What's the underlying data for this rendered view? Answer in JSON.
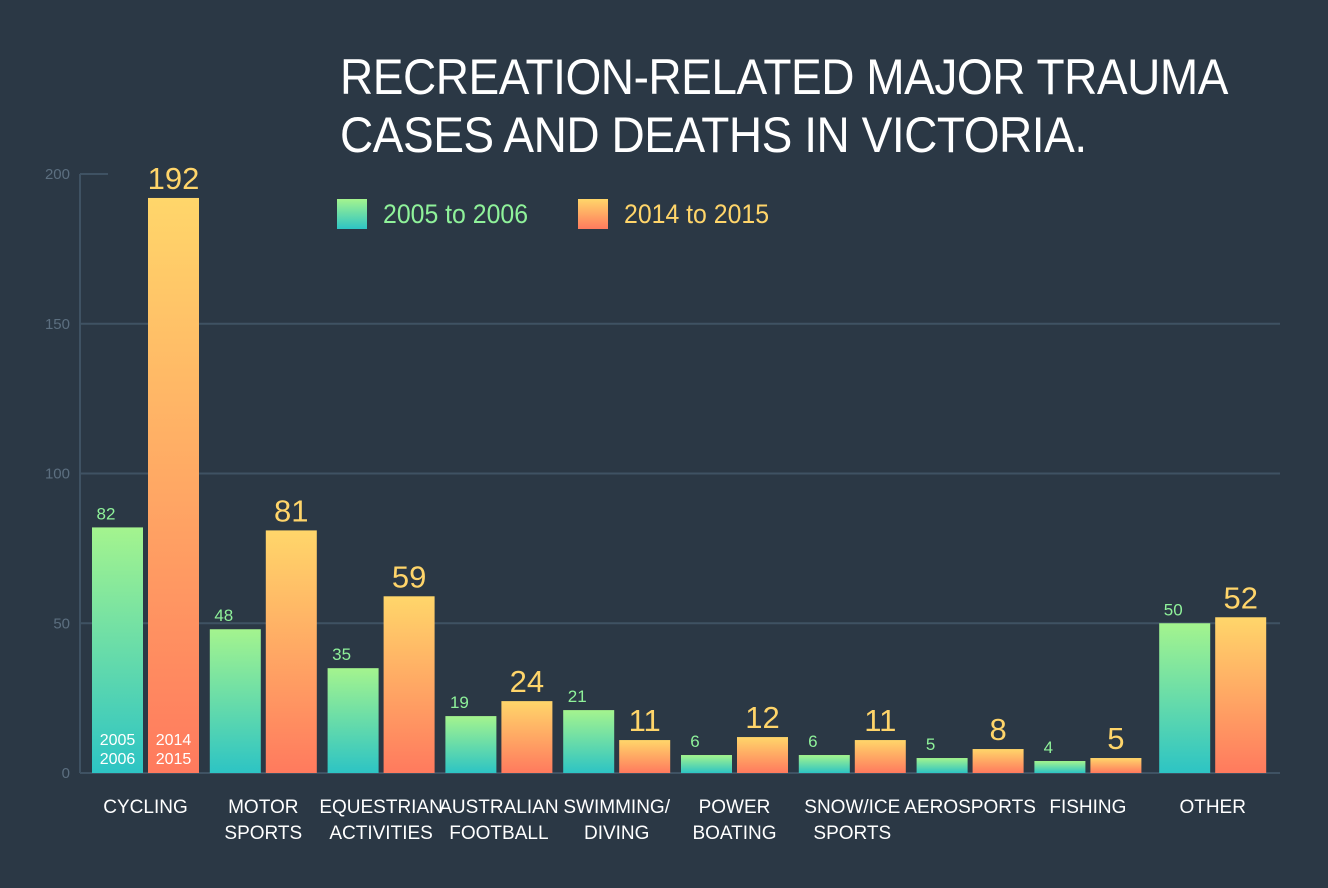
{
  "title": {
    "line1": "RECREATION-RELATED MAJOR TRAUMA",
    "line2": "CASES AND DEATHS IN VICTORIA."
  },
  "colors": {
    "background": "#2b3845",
    "series_a_top": "#a4f48e",
    "series_a_bottom": "#2dc4c4",
    "series_b_top": "#ffd66a",
    "series_b_bottom": "#ff7a5e",
    "series_a_text": "#8ff29a",
    "series_b_text": "#ffd56a",
    "grid": "#3f5263",
    "tick_text": "#5c6f80"
  },
  "legend": {
    "series_a": "2005 to 2006",
    "series_b": "2014 to 2015"
  },
  "chart_data": {
    "type": "bar",
    "title": "RECREATION-RELATED MAJOR TRAUMA CASES AND DEATHS IN VICTORIA.",
    "categories": [
      [
        "CYCLING"
      ],
      [
        "MOTOR",
        "SPORTS"
      ],
      [
        "EQUESTRIAN",
        "ACTIVITIES"
      ],
      [
        "AUSTRALIAN",
        "FOOTBALL"
      ],
      [
        "SWIMMING/",
        "DIVING"
      ],
      [
        "POWER",
        "BOATING"
      ],
      [
        "SNOW/ICE",
        "SPORTS"
      ],
      [
        "AEROSPORTS"
      ],
      [
        "FISHING"
      ],
      [
        "OTHER"
      ]
    ],
    "series": [
      {
        "name": "2005 to 2006",
        "values": [
          82,
          48,
          35,
          19,
          21,
          6,
          6,
          5,
          4,
          50
        ]
      },
      {
        "name": "2014 to 2015",
        "values": [
          192,
          81,
          59,
          24,
          11,
          12,
          11,
          8,
          5,
          52
        ]
      }
    ],
    "in_bar_labels": [
      [
        "2005",
        "2006"
      ],
      [
        "2014",
        "2015"
      ]
    ],
    "y_ticks": [
      0,
      50,
      100,
      150,
      200
    ],
    "ylim": [
      0,
      200
    ],
    "xlabel": "",
    "ylabel": "",
    "grid": true,
    "legend_position": "top"
  }
}
